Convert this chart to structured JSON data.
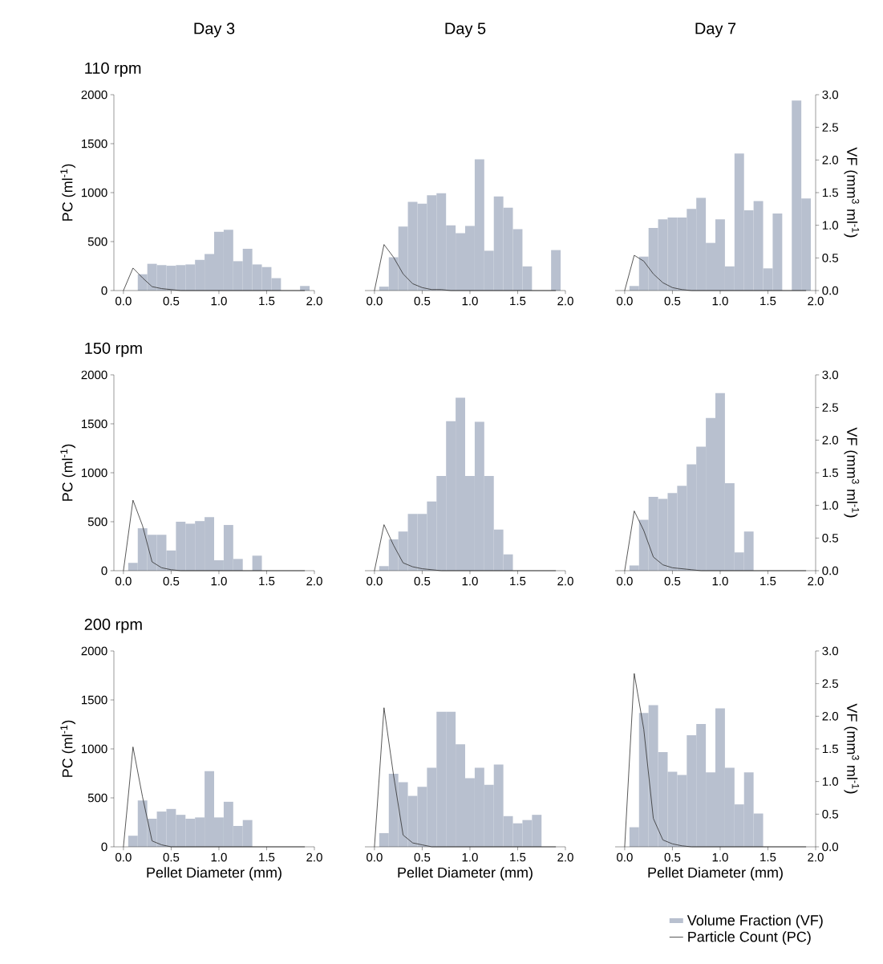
{
  "chart_data": [
    {
      "type": "bar",
      "title": "Day 3",
      "annotations": [
        "110 rpm"
      ],
      "ylabel": "PC (ml$^{-1}$)",
      "xlim": [
        -0.1,
        2.0
      ],
      "xticks": [
        {
          "value": 0,
          "label": "0.0"
        },
        {
          "value": 0.5,
          "label": "0.5"
        },
        {
          "value": 1.0,
          "label": "1.0"
        },
        {
          "value": 1.5,
          "label": "1.5"
        },
        {
          "value": 2.0,
          "label": "2.0"
        }
      ],
      "ylim": [
        0,
        2000
      ],
      "yticks": [
        0,
        500,
        1000,
        1500,
        2000
      ],
      "y2lim": [
        0,
        3.0
      ],
      "series": [
        {
          "axis": "y2",
          "color": "#b8c0cf",
          "x": [
            0.2,
            0.3,
            0.4,
            0.5,
            0.6,
            0.7,
            0.8,
            0.9,
            1.0,
            1.1,
            1.2,
            1.3,
            1.4,
            1.5,
            1.6,
            1.7,
            1.8,
            1.9
          ],
          "values": [
            0.25,
            0.41,
            0.39,
            0.38,
            0.39,
            0.4,
            0.47,
            0.56,
            0.9,
            0.93,
            0.45,
            0.64,
            0.4,
            0.36,
            0.19,
            null,
            null,
            0.07
          ]
        },
        {
          "type": "line",
          "axis": "y",
          "color": "#2e2e2e",
          "x": [
            0,
            0.1,
            0.2,
            0.3,
            0.4,
            0.5,
            0.6,
            0.7,
            0.8,
            0.9,
            1.0,
            1.1,
            1.2,
            1.3,
            1.4,
            1.5,
            1.6,
            1.7,
            1.8,
            1.9
          ],
          "values": [
            0,
            230,
            130,
            40,
            20,
            10,
            0,
            0,
            0,
            0,
            0,
            0,
            0,
            0,
            0,
            0,
            0,
            0,
            0,
            0
          ]
        }
      ]
    },
    {
      "type": "bar",
      "title": "Day 5",
      "xlim": [
        -0.1,
        2.0
      ],
      "xticks": [
        {
          "value": 0,
          "label": "0.0"
        },
        {
          "value": 0.5,
          "label": "0.5"
        },
        {
          "value": 1.0,
          "label": "1.0"
        },
        {
          "value": 1.5,
          "label": "1.5"
        },
        {
          "value": 2.0,
          "label": "2.0"
        }
      ],
      "ylim": [
        0,
        2000
      ],
      "y2lim": [
        0,
        3.0
      ],
      "series": [
        {
          "axis": "y2",
          "color": "#b8c0cf",
          "x": [
            0.1,
            0.2,
            0.3,
            0.4,
            0.5,
            0.6,
            0.7,
            0.8,
            0.9,
            1.0,
            1.1,
            1.2,
            1.3,
            1.4,
            1.5,
            1.6,
            1.7,
            1.8,
            1.9
          ],
          "values": [
            0.06,
            0.51,
            0.98,
            1.36,
            1.33,
            1.46,
            1.49,
            1.0,
            0.88,
            0.99,
            2.01,
            0.61,
            1.44,
            1.27,
            0.94,
            0.37,
            null,
            null,
            0.62
          ]
        },
        {
          "type": "line",
          "axis": "y",
          "color": "#2e2e2e",
          "x": [
            0,
            0.1,
            0.2,
            0.3,
            0.4,
            0.5,
            0.6,
            0.7,
            0.8,
            0.9,
            1.0,
            1.1,
            1.2,
            1.3,
            1.4,
            1.5,
            1.6,
            1.7,
            1.8,
            1.9
          ],
          "values": [
            0,
            470,
            340,
            170,
            70,
            30,
            10,
            10,
            0,
            0,
            0,
            0,
            0,
            0,
            0,
            0,
            0,
            0,
            0,
            0
          ]
        }
      ]
    },
    {
      "type": "bar",
      "title": "Day 7",
      "y2label": "VF (mm$^{3}$ ml$^{-1}$)",
      "xlim": [
        -0.1,
        2.0
      ],
      "xticks": [
        {
          "value": 0,
          "label": "0.0"
        },
        {
          "value": 0.5,
          "label": "0.5"
        },
        {
          "value": 1.0,
          "label": "1.0"
        },
        {
          "value": 1.5,
          "label": "1.5"
        },
        {
          "value": 2.0,
          "label": "2.0"
        }
      ],
      "ylim": [
        0,
        2000
      ],
      "y2lim": [
        0,
        3.0
      ],
      "y2ticks": [
        {
          "value": 0,
          "label": "0.0"
        },
        {
          "value": 0.5,
          "label": "0.5"
        },
        {
          "value": 1.0,
          "label": "1.0"
        },
        {
          "value": 1.5,
          "label": "1.5"
        },
        {
          "value": 2.0,
          "label": "2.0"
        },
        {
          "value": 2.5,
          "label": "2.5"
        },
        {
          "value": 3.0,
          "label": "3.0"
        }
      ],
      "series": [
        {
          "axis": "y2",
          "color": "#b8c0cf",
          "x": [
            0.1,
            0.2,
            0.3,
            0.4,
            0.5,
            0.6,
            0.7,
            0.8,
            0.9,
            1.0,
            1.1,
            1.2,
            1.3,
            1.4,
            1.5,
            1.6,
            1.7,
            1.8,
            1.9
          ],
          "values": [
            0.07,
            0.52,
            0.96,
            1.09,
            1.12,
            1.12,
            1.25,
            1.42,
            0.73,
            1.09,
            0.37,
            2.1,
            1.23,
            1.37,
            0.34,
            1.18,
            null,
            2.91,
            1.41
          ]
        },
        {
          "type": "line",
          "axis": "y",
          "color": "#2e2e2e",
          "x": [
            0,
            0.1,
            0.2,
            0.3,
            0.4,
            0.5,
            0.6,
            0.7,
            0.8,
            0.9,
            1.0,
            1.1,
            1.2,
            1.3,
            1.4,
            1.5,
            1.6,
            1.7,
            1.8,
            1.9
          ],
          "values": [
            0,
            360,
            300,
            170,
            80,
            30,
            10,
            0,
            0,
            0,
            0,
            0,
            0,
            0,
            0,
            0,
            0,
            0,
            0,
            0
          ]
        }
      ]
    },
    {
      "type": "bar",
      "annotations": [
        "150 rpm"
      ],
      "ylabel": "PC (ml$^{-1}$)",
      "xlim": [
        -0.1,
        2.0
      ],
      "xticks": [
        {
          "value": 0,
          "label": "0.0"
        },
        {
          "value": 0.5,
          "label": "0.5"
        },
        {
          "value": 1.0,
          "label": "1.0"
        },
        {
          "value": 1.5,
          "label": "1.5"
        },
        {
          "value": 2.0,
          "label": "2.0"
        }
      ],
      "ylim": [
        0,
        2000
      ],
      "yticks": [
        0,
        500,
        1000,
        1500,
        2000
      ],
      "y2lim": [
        0,
        3.0
      ],
      "series": [
        {
          "axis": "y2",
          "color": "#b8c0cf",
          "x": [
            0.1,
            0.2,
            0.3,
            0.4,
            0.5,
            0.6,
            0.7,
            0.8,
            0.9,
            1.0,
            1.1,
            1.2,
            1.3,
            1.4
          ],
          "values": [
            0.12,
            0.65,
            0.55,
            0.55,
            0.31,
            0.75,
            0.72,
            0.76,
            0.82,
            0.16,
            0.7,
            0.18,
            null,
            0.23
          ]
        },
        {
          "type": "line",
          "axis": "y",
          "color": "#2e2e2e",
          "x": [
            0,
            0.1,
            0.2,
            0.3,
            0.4,
            0.5,
            0.6,
            0.7,
            0.8,
            0.9,
            1.0,
            1.1,
            1.2,
            1.3,
            1.4,
            1.5,
            1.6,
            1.7,
            1.8,
            1.9
          ],
          "values": [
            0,
            720,
            460,
            90,
            30,
            10,
            0,
            0,
            0,
            0,
            0,
            0,
            0,
            0,
            0,
            0,
            0,
            0,
            0,
            0
          ]
        }
      ]
    },
    {
      "type": "bar",
      "xlim": [
        -0.1,
        2.0
      ],
      "xticks": [
        {
          "value": 0,
          "label": "0.0"
        },
        {
          "value": 0.5,
          "label": "0.5"
        },
        {
          "value": 1.0,
          "label": "1.0"
        },
        {
          "value": 1.5,
          "label": "1.5"
        },
        {
          "value": 2.0,
          "label": "2.0"
        }
      ],
      "ylim": [
        0,
        2000
      ],
      "y2lim": [
        0,
        3.0
      ],
      "series": [
        {
          "axis": "y2",
          "color": "#b8c0cf",
          "x": [
            0.1,
            0.2,
            0.3,
            0.4,
            0.5,
            0.6,
            0.7,
            0.8,
            0.9,
            1.0,
            1.1,
            1.2,
            1.3,
            1.4
          ],
          "values": [
            0.07,
            0.48,
            0.6,
            0.87,
            0.87,
            1.06,
            1.45,
            2.29,
            2.65,
            1.45,
            2.28,
            1.45,
            0.63,
            0.25
          ]
        },
        {
          "type": "line",
          "axis": "y",
          "color": "#2e2e2e",
          "x": [
            0,
            0.1,
            0.2,
            0.3,
            0.4,
            0.5,
            0.6,
            0.7,
            0.8,
            0.9,
            1.0,
            1.1,
            1.2,
            1.3,
            1.4,
            1.5,
            1.6,
            1.7,
            1.8,
            1.9
          ],
          "values": [
            0,
            470,
            260,
            80,
            40,
            20,
            10,
            0,
            0,
            0,
            0,
            0,
            0,
            0,
            0,
            0,
            0,
            0,
            0,
            0
          ]
        }
      ]
    },
    {
      "type": "bar",
      "y2label": "VF (mm$^{3}$ ml$^{-1}$)",
      "xlim": [
        -0.1,
        2.0
      ],
      "xticks": [
        {
          "value": 0,
          "label": "0.0"
        },
        {
          "value": 0.5,
          "label": "0.5"
        },
        {
          "value": 1.0,
          "label": "1.0"
        },
        {
          "value": 1.5,
          "label": "1.5"
        },
        {
          "value": 2.0,
          "label": "2.0"
        }
      ],
      "ylim": [
        0,
        2000
      ],
      "y2lim": [
        0,
        3.0
      ],
      "y2ticks": [
        {
          "value": 0,
          "label": "0.0"
        },
        {
          "value": 0.5,
          "label": "0.5"
        },
        {
          "value": 1.0,
          "label": "1.0"
        },
        {
          "value": 1.5,
          "label": "1.5"
        },
        {
          "value": 2.0,
          "label": "2.0"
        },
        {
          "value": 2.5,
          "label": "2.5"
        },
        {
          "value": 3.0,
          "label": "3.0"
        }
      ],
      "series": [
        {
          "axis": "y2",
          "color": "#b8c0cf",
          "x": [
            0.1,
            0.2,
            0.3,
            0.4,
            0.5,
            0.6,
            0.7,
            0.8,
            0.9,
            1.0,
            1.1,
            1.2,
            1.3
          ],
          "values": [
            0.08,
            0.78,
            1.13,
            1.1,
            1.19,
            1.3,
            1.63,
            1.9,
            2.34,
            2.72,
            1.34,
            0.28,
            0.6
          ]
        },
        {
          "type": "line",
          "axis": "y",
          "color": "#2e2e2e",
          "x": [
            0,
            0.1,
            0.2,
            0.3,
            0.4,
            0.5,
            0.6,
            0.7,
            0.8,
            0.9,
            1.0,
            1.1,
            1.2,
            1.3,
            1.4,
            1.5,
            1.6,
            1.7,
            1.8,
            1.9
          ],
          "values": [
            0,
            610,
            410,
            140,
            60,
            30,
            20,
            10,
            0,
            0,
            0,
            0,
            0,
            0,
            0,
            0,
            0,
            0,
            0,
            0
          ]
        }
      ]
    },
    {
      "type": "bar",
      "annotations": [
        "200 rpm"
      ],
      "xlabel": "Pellet Diameter (mm)",
      "ylabel": "PC (ml$^{-1}$)",
      "xlim": [
        -0.1,
        2.0
      ],
      "xticks": [
        {
          "value": 0,
          "label": "0.0"
        },
        {
          "value": 0.5,
          "label": "0.5"
        },
        {
          "value": 1.0,
          "label": "1.0"
        },
        {
          "value": 1.5,
          "label": "1.5"
        },
        {
          "value": 2.0,
          "label": "2.0"
        }
      ],
      "ylim": [
        0,
        2000
      ],
      "yticks": [
        0,
        500,
        1000,
        1500,
        2000
      ],
      "y2lim": [
        0,
        3.0
      ],
      "series": [
        {
          "axis": "y2",
          "color": "#b8c0cf",
          "x": [
            0.1,
            0.2,
            0.3,
            0.4,
            0.5,
            0.6,
            0.7,
            0.8,
            0.9,
            1.0,
            1.1,
            1.2,
            1.3
          ],
          "values": [
            0.17,
            0.71,
            0.43,
            0.54,
            0.58,
            0.49,
            0.43,
            0.45,
            1.16,
            0.45,
            0.69,
            0.32,
            0.41
          ]
        },
        {
          "type": "line",
          "axis": "y",
          "color": "#2e2e2e",
          "x": [
            0,
            0.1,
            0.2,
            0.3,
            0.4,
            0.5,
            0.6,
            0.7,
            0.8,
            0.9,
            1.0,
            1.1,
            1.2,
            1.3,
            1.4,
            1.5,
            1.6,
            1.7,
            1.8,
            1.9
          ],
          "values": [
            0,
            1020,
            510,
            60,
            20,
            0,
            0,
            0,
            0,
            0,
            0,
            0,
            0,
            0,
            0,
            0,
            0,
            0,
            0,
            0
          ]
        }
      ]
    },
    {
      "type": "bar",
      "xlabel": "Pellet Diameter (mm)",
      "xlim": [
        -0.1,
        2.0
      ],
      "xticks": [
        {
          "value": 0,
          "label": "0.0"
        },
        {
          "value": 0.5,
          "label": "0.5"
        },
        {
          "value": 1.0,
          "label": "1.0"
        },
        {
          "value": 1.5,
          "label": "1.5"
        },
        {
          "value": 2.0,
          "label": "2.0"
        }
      ],
      "ylim": [
        0,
        2000
      ],
      "y2lim": [
        0,
        3.0
      ],
      "series": [
        {
          "axis": "y2",
          "color": "#b8c0cf",
          "x": [
            0.1,
            0.2,
            0.3,
            0.4,
            0.5,
            0.6,
            0.7,
            0.8,
            0.9,
            1.0,
            1.1,
            1.2,
            1.3,
            1.4,
            1.5,
            1.6,
            1.7
          ],
          "values": [
            0.21,
            1.12,
            0.99,
            0.78,
            0.92,
            1.21,
            2.07,
            2.07,
            1.57,
            1.05,
            1.21,
            0.95,
            1.26,
            0.47,
            0.36,
            0.41,
            0.49
          ]
        },
        {
          "type": "line",
          "axis": "y",
          "color": "#2e2e2e",
          "x": [
            0,
            0.1,
            0.2,
            0.3,
            0.4,
            0.5,
            0.6,
            0.7,
            0.8,
            0.9,
            1.0,
            1.1,
            1.2,
            1.3,
            1.4,
            1.5,
            1.6,
            1.7,
            1.8,
            1.9
          ],
          "values": [
            0,
            1420,
            730,
            120,
            40,
            20,
            0,
            0,
            0,
            0,
            0,
            0,
            0,
            0,
            0,
            0,
            0,
            0,
            0,
            0
          ]
        }
      ]
    },
    {
      "type": "bar",
      "xlabel": "Pellet Diameter (mm)",
      "y2label": "VF (mm$^{3}$ ml$^{-1}$)",
      "legend": "bottom right",
      "xlim": [
        -0.1,
        2.0
      ],
      "xticks": [
        {
          "value": 0,
          "label": "0.0"
        },
        {
          "value": 0.5,
          "label": "0.5"
        },
        {
          "value": 1.0,
          "label": "1.0"
        },
        {
          "value": 1.5,
          "label": "1.5"
        },
        {
          "value": 2.0,
          "label": "2.0"
        }
      ],
      "ylim": [
        0,
        2000
      ],
      "y2lim": [
        0,
        3.0
      ],
      "y2ticks": [
        {
          "value": 0,
          "label": "0.0"
        },
        {
          "value": 0.5,
          "label": "0.5"
        },
        {
          "value": 1.0,
          "label": "1.0"
        },
        {
          "value": 1.5,
          "label": "1.5"
        },
        {
          "value": 2.0,
          "label": "2.0"
        },
        {
          "value": 2.5,
          "label": "2.5"
        },
        {
          "value": 3.0,
          "label": "3.0"
        }
      ],
      "series": [
        {
          "name": "Volume Fraction (VF)",
          "axis": "y2",
          "color": "#b8c0cf",
          "x": [
            0.1,
            0.2,
            0.3,
            0.4,
            0.5,
            0.6,
            0.7,
            0.8,
            0.9,
            1.0,
            1.1,
            1.2,
            1.3,
            1.4
          ],
          "values": [
            0.3,
            2.05,
            2.17,
            1.45,
            1.15,
            1.1,
            1.71,
            1.88,
            1.14,
            2.12,
            1.21,
            0.65,
            1.14,
            0.51
          ]
        },
        {
          "name": "Particle Count (PC)",
          "type": "line",
          "axis": "y",
          "color": "#2e2e2e",
          "x": [
            0,
            0.1,
            0.2,
            0.3,
            0.4,
            0.5,
            0.6,
            0.7,
            0.8,
            0.9,
            1.0,
            1.1,
            1.2,
            1.3,
            1.4,
            1.5,
            1.6,
            1.7,
            1.8,
            1.9
          ],
          "values": [
            0,
            1770,
            1200,
            290,
            70,
            30,
            10,
            0,
            0,
            0,
            0,
            0,
            0,
            0,
            0,
            0,
            0,
            0,
            0,
            0
          ]
        }
      ]
    }
  ]
}
